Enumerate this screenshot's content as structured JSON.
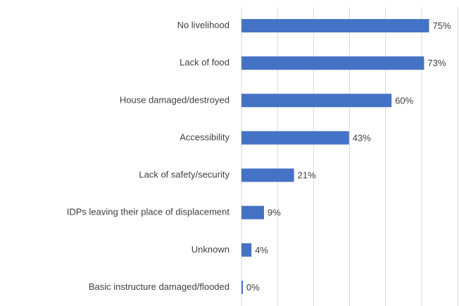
{
  "chart_data": {
    "type": "bar",
    "orientation": "horizontal",
    "categories": [
      "No livelihood",
      "Lack of food",
      "House damaged/destroyed",
      "Accessibility",
      "Lack of safety/security",
      "IDPs leaving their place of displacement",
      "Unknown",
      "Basic instructure damaged/flooded"
    ],
    "values": [
      75,
      73,
      60,
      43,
      21,
      9,
      4,
      0
    ],
    "value_labels": [
      "75%",
      "73%",
      "60%",
      "43%",
      "21%",
      "9%",
      "4%",
      "0%"
    ],
    "color": "#4472c4",
    "xlim": [
      0,
      86.4
    ],
    "xticks": [
      0,
      14.4,
      28.8,
      43.2,
      57.6,
      72,
      86.4
    ],
    "grid": true
  }
}
